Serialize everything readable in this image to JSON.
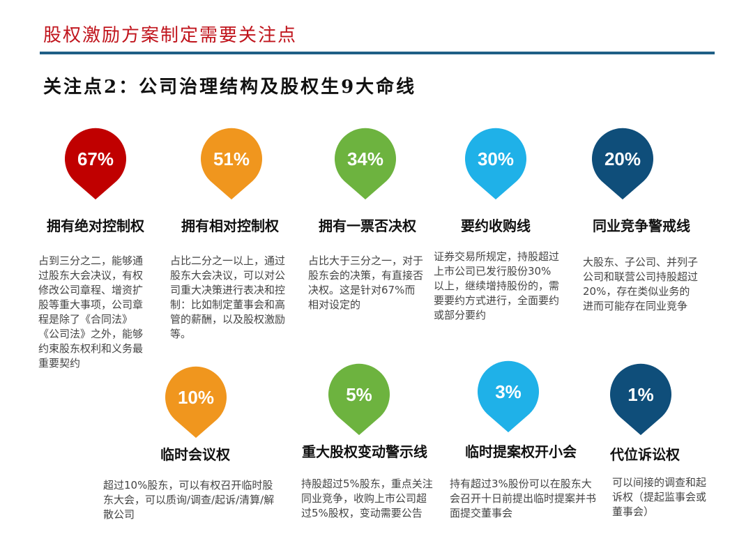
{
  "header": {
    "title": "股权激励方案制定需要关注点",
    "subtitle": "关注点2：公司治理结构及股权生9大命线"
  },
  "items": [
    {
      "value": "67%",
      "title": "拥有绝对控制权",
      "text": "占到三分之二，能够通过股东大会决议，有权修改公司章程、增资扩股等重大事项，公司章程是除了《合同法》《公司法》之外，能够约束股东权利和义务最重要契约"
    },
    {
      "value": "51%",
      "title": "拥有相对控制权",
      "text": "占比二分之一以上，通过股东大会决议，可以对公司重大决策进行表决和控制：比如制定董事会和高管的薪酬，以及股权激励等。"
    },
    {
      "value": "34%",
      "title": "拥有一票否决权",
      "text": "占比大于三分之一，对于股东会的决策，有直接否决权。这是针对67%而相对设定的"
    },
    {
      "value": "30%",
      "title": "要约收购线",
      "text": "证券交易所规定，持股超过上市公司已发行股份30%以上，继续增持股份的，需要要约方式进行，全面要约或部分要约"
    },
    {
      "value": "20%",
      "title": "同业竞争警戒线",
      "text": "大股东、子公司、并列子公司和联营公司持股超过20%，存在类似业务的进而可能存在同业竞争"
    },
    {
      "value": "10%",
      "title": "临时会议权",
      "text": "超过10%股东，可以有权召开临时股东大会，可以质询/调查/起诉/清算/解散公司"
    },
    {
      "value": "5%",
      "title": "重大股权变动警示线",
      "text": "持股超过5%股东，重点关注同业竞争，收购上市公司超过5%股权，变动需要公告"
    },
    {
      "value": "3%",
      "title": "临时提案权开小会",
      "text": "持有超过3%股份可以在股东大会召开十日前提出临时提案并书面提交董事会"
    },
    {
      "value": "1%",
      "title": "代位诉讼权",
      "text": "可以间接的调查和起诉权（提起监事会或董事会）"
    }
  ]
}
